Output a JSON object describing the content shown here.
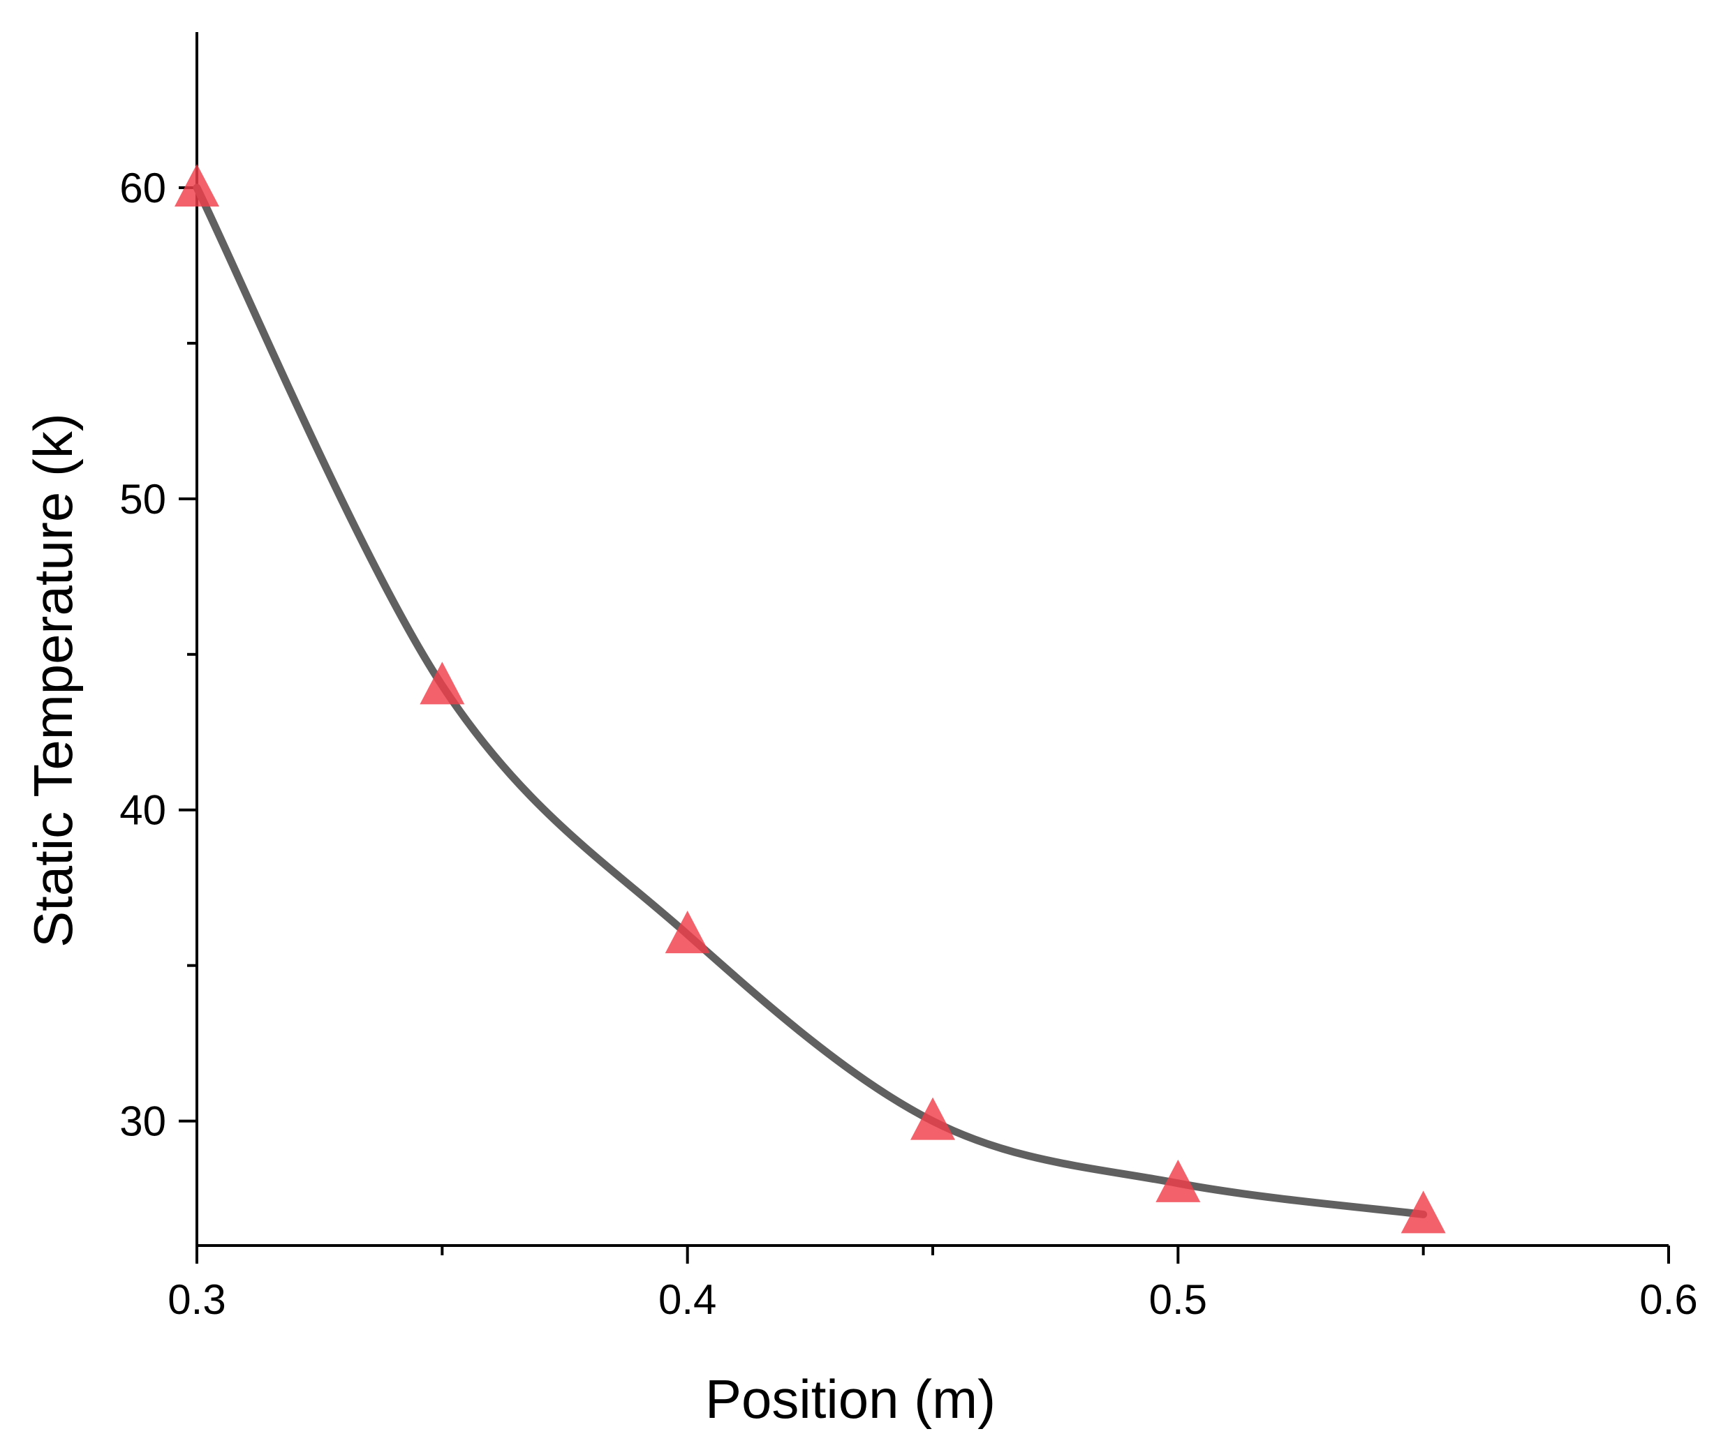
{
  "chart_data": {
    "type": "line",
    "xlabel": "Position (m)",
    "ylabel": "Static Temperature (k)",
    "xlim": [
      0.3,
      0.6
    ],
    "ylim": [
      26,
      65
    ],
    "xticks": [
      0.3,
      0.4,
      0.5,
      0.6
    ],
    "xtick_labels": [
      "0.3",
      "0.4",
      "0.5",
      "0.6"
    ],
    "xminor": [
      0.35,
      0.45,
      0.55
    ],
    "yticks": [
      30,
      40,
      50,
      60
    ],
    "ytick_labels": [
      "30",
      "40",
      "50",
      "60"
    ],
    "yminor": [
      35,
      45,
      55
    ],
    "grid": false,
    "legend": false,
    "series": [
      {
        "x": [
          0.3,
          0.35,
          0.4,
          0.45,
          0.5,
          0.55
        ],
        "y": [
          60,
          44,
          36,
          30,
          28,
          27
        ],
        "line_color": "#606060",
        "marker": "triangle",
        "marker_color": "#f0404a",
        "smooth": true
      }
    ]
  }
}
